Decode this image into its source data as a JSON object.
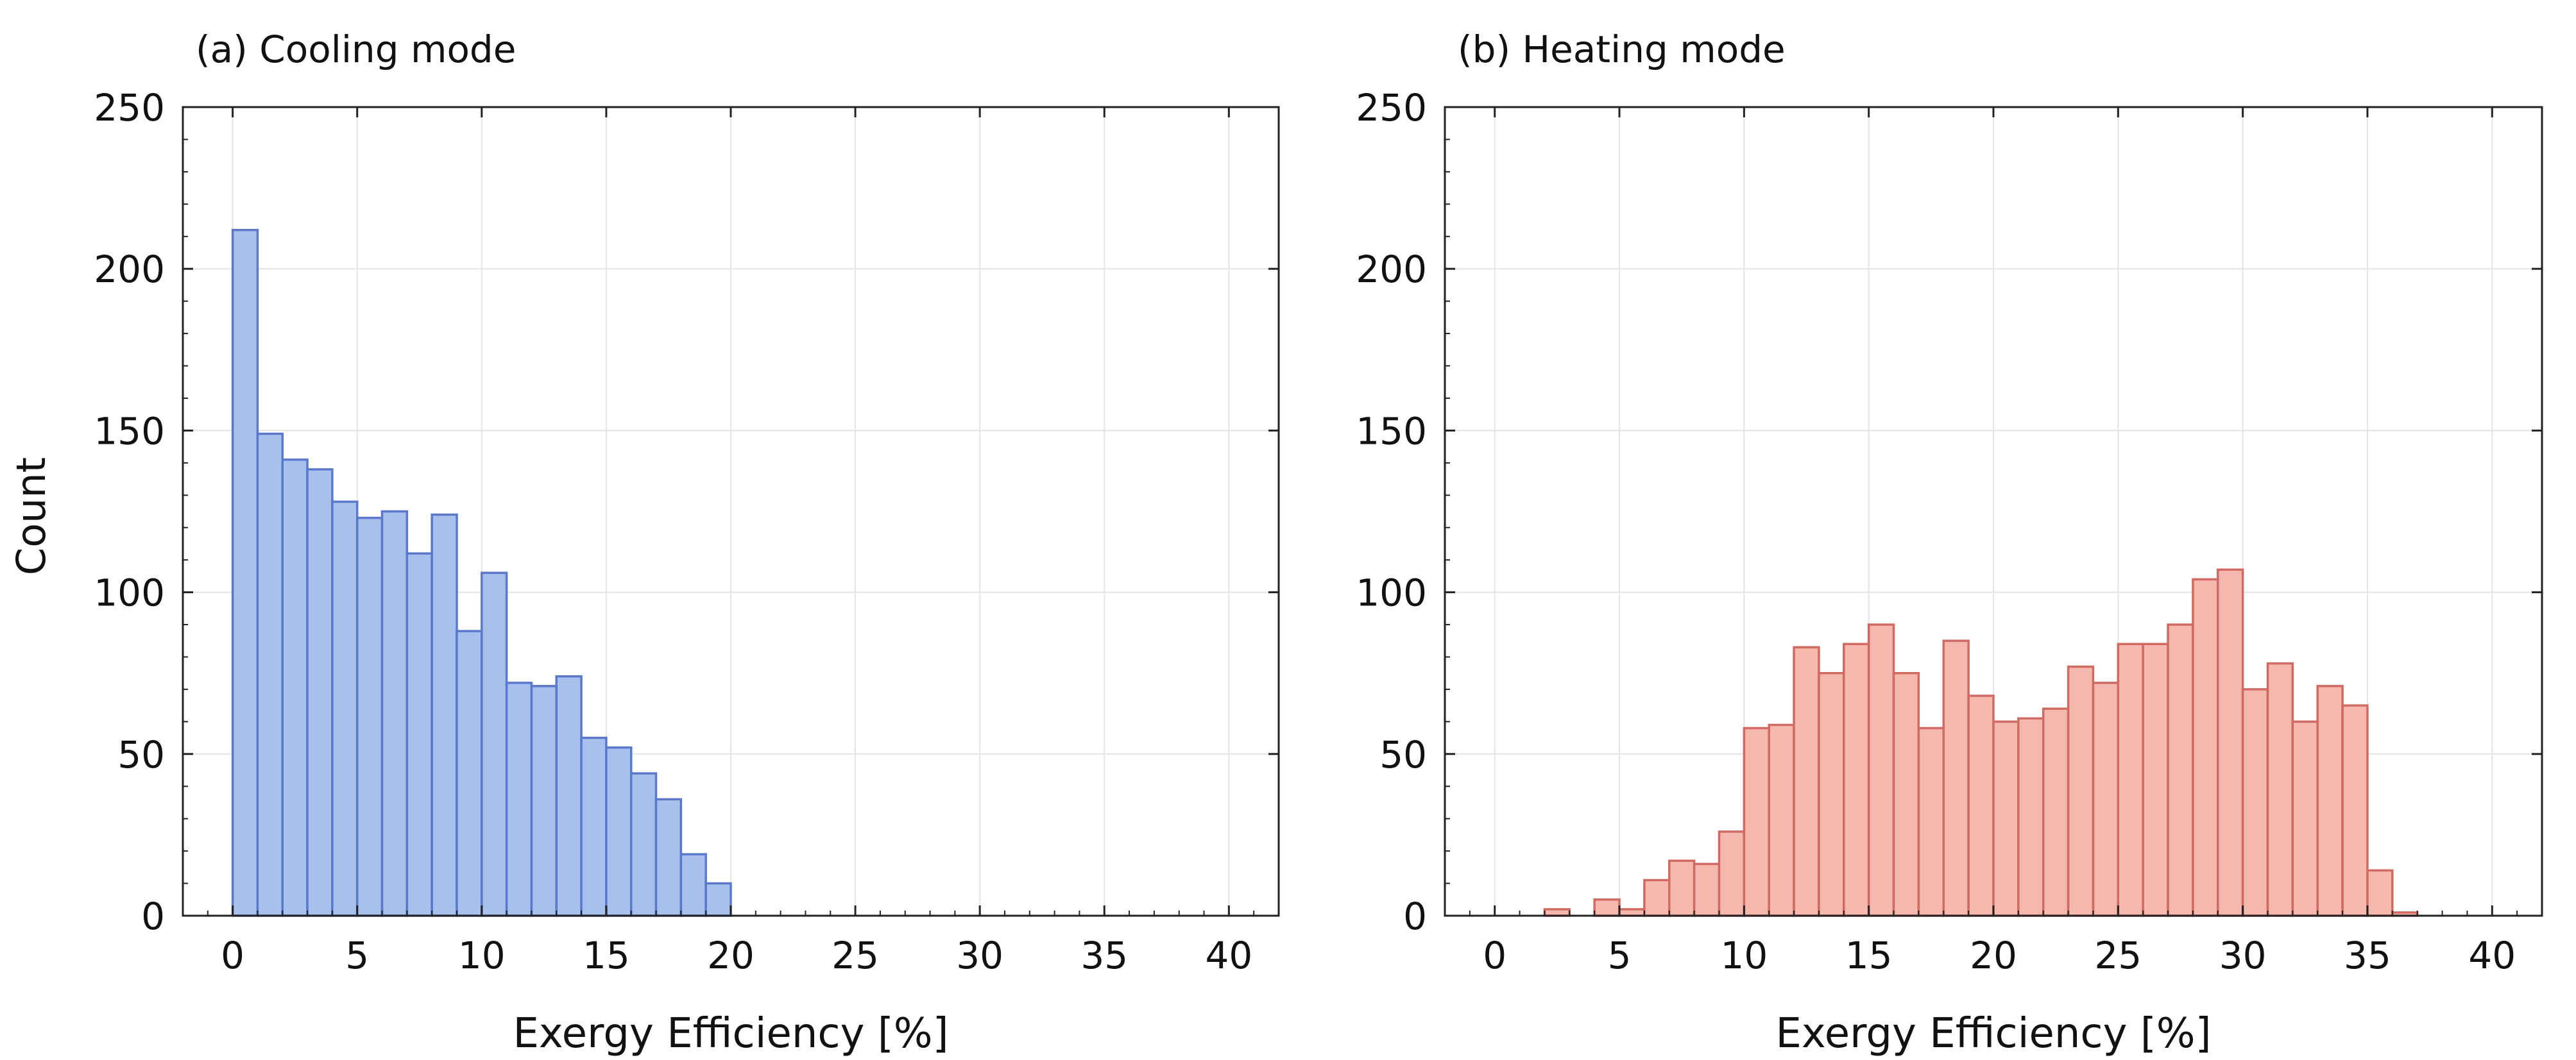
{
  "figure": {
    "shared_ylabel": "Count",
    "colors": {
      "cooling_fill": "#a8c0ec",
      "cooling_edge": "#5a78cc",
      "heating_fill": "#f4b8ae",
      "heating_edge": "#d06a62",
      "grid": "#e4e4e4",
      "axis": "#222222"
    }
  },
  "chart_data": [
    {
      "type": "bar",
      "title": "(a) Cooling mode",
      "xlabel": "Exergy Efficiency [%]",
      "ylabel": "Count",
      "xlim": [
        -2,
        42
      ],
      "ylim": [
        0,
        250
      ],
      "xticks": [
        0,
        5,
        10,
        15,
        20,
        25,
        30,
        35,
        40
      ],
      "yticks": [
        0,
        50,
        100,
        150,
        200,
        250
      ],
      "grid": true,
      "bin_width": 1,
      "series": [
        {
          "bins": [
            {
              "x0": 0,
              "x1": 1,
              "count": 212
            },
            {
              "x0": 1,
              "x1": 2,
              "count": 149
            },
            {
              "x0": 2,
              "x1": 3,
              "count": 141
            },
            {
              "x0": 3,
              "x1": 4,
              "count": 138
            },
            {
              "x0": 4,
              "x1": 5,
              "count": 128
            },
            {
              "x0": 5,
              "x1": 6,
              "count": 123
            },
            {
              "x0": 6,
              "x1": 7,
              "count": 125
            },
            {
              "x0": 7,
              "x1": 8,
              "count": 112
            },
            {
              "x0": 8,
              "x1": 9,
              "count": 124
            },
            {
              "x0": 9,
              "x1": 10,
              "count": 88
            },
            {
              "x0": 10,
              "x1": 11,
              "count": 106
            },
            {
              "x0": 11,
              "x1": 12,
              "count": 72
            },
            {
              "x0": 12,
              "x1": 13,
              "count": 71
            },
            {
              "x0": 13,
              "x1": 14,
              "count": 74
            },
            {
              "x0": 14,
              "x1": 15,
              "count": 55
            },
            {
              "x0": 15,
              "x1": 16,
              "count": 52
            },
            {
              "x0": 16,
              "x1": 17,
              "count": 44
            },
            {
              "x0": 17,
              "x1": 18,
              "count": 36
            },
            {
              "x0": 18,
              "x1": 19,
              "count": 19
            },
            {
              "x0": 19,
              "x1": 20,
              "count": 10
            }
          ]
        }
      ]
    },
    {
      "type": "bar",
      "title": "(b) Heating mode",
      "xlabel": "Exergy Efficiency [%]",
      "ylabel": "",
      "xlim": [
        -2,
        42
      ],
      "ylim": [
        0,
        250
      ],
      "xticks": [
        0,
        5,
        10,
        15,
        20,
        25,
        30,
        35,
        40
      ],
      "yticks": [
        0,
        50,
        100,
        150,
        200,
        250
      ],
      "grid": true,
      "bin_width": 1,
      "series": [
        {
          "bins": [
            {
              "x0": 0,
              "x1": 1,
              "count": 0
            },
            {
              "x0": 1,
              "x1": 2,
              "count": 0
            },
            {
              "x0": 2,
              "x1": 3,
              "count": 2
            },
            {
              "x0": 3,
              "x1": 4,
              "count": 0
            },
            {
              "x0": 4,
              "x1": 5,
              "count": 5
            },
            {
              "x0": 5,
              "x1": 6,
              "count": 2
            },
            {
              "x0": 6,
              "x1": 7,
              "count": 11
            },
            {
              "x0": 7,
              "x1": 8,
              "count": 17
            },
            {
              "x0": 8,
              "x1": 9,
              "count": 16
            },
            {
              "x0": 9,
              "x1": 10,
              "count": 26
            },
            {
              "x0": 10,
              "x1": 11,
              "count": 58
            },
            {
              "x0": 11,
              "x1": 12,
              "count": 59
            },
            {
              "x0": 12,
              "x1": 13,
              "count": 83
            },
            {
              "x0": 13,
              "x1": 14,
              "count": 75
            },
            {
              "x0": 14,
              "x1": 15,
              "count": 84
            },
            {
              "x0": 15,
              "x1": 16,
              "count": 90
            },
            {
              "x0": 16,
              "x1": 17,
              "count": 75
            },
            {
              "x0": 17,
              "x1": 18,
              "count": 58
            },
            {
              "x0": 18,
              "x1": 19,
              "count": 85
            },
            {
              "x0": 19,
              "x1": 20,
              "count": 68
            },
            {
              "x0": 20,
              "x1": 21,
              "count": 60
            },
            {
              "x0": 21,
              "x1": 22,
              "count": 61
            },
            {
              "x0": 22,
              "x1": 23,
              "count": 64
            },
            {
              "x0": 23,
              "x1": 24,
              "count": 77
            },
            {
              "x0": 24,
              "x1": 25,
              "count": 72
            },
            {
              "x0": 25,
              "x1": 26,
              "count": 84
            },
            {
              "x0": 26,
              "x1": 27,
              "count": 84
            },
            {
              "x0": 27,
              "x1": 28,
              "count": 90
            },
            {
              "x0": 28,
              "x1": 29,
              "count": 104
            },
            {
              "x0": 29,
              "x1": 30,
              "count": 107
            },
            {
              "x0": 30,
              "x1": 31,
              "count": 70
            },
            {
              "x0": 31,
              "x1": 32,
              "count": 78
            },
            {
              "x0": 32,
              "x1": 33,
              "count": 60
            },
            {
              "x0": 33,
              "x1": 34,
              "count": 71
            },
            {
              "x0": 34,
              "x1": 35,
              "count": 65
            },
            {
              "x0": 35,
              "x1": 36,
              "count": 14
            },
            {
              "x0": 36,
              "x1": 37,
              "count": 1
            },
            {
              "x0": 37,
              "x1": 38,
              "count": 0
            },
            {
              "x0": 38,
              "x1": 39,
              "count": 0
            },
            {
              "x0": 39,
              "x1": 40,
              "count": 0
            }
          ]
        }
      ]
    }
  ]
}
